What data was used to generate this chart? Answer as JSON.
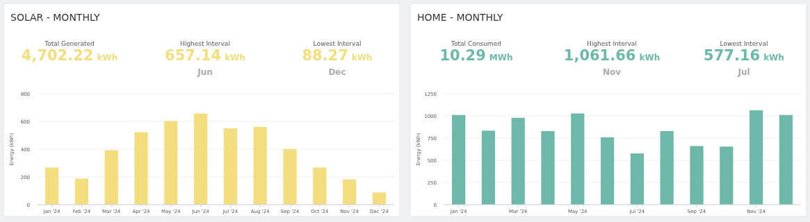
{
  "chart_data": [
    {
      "type": "bar",
      "title": "SOLAR - MONTHLY",
      "ylabel": "Energy (kWh)",
      "annotations": [
        "Total Generated",
        "4,702.22 kWh",
        "Highest Interval",
        "657.14 kWh",
        "Jun",
        "Lowest Interval",
        "88.27 kWh",
        "Dec"
      ],
      "categories": [
        "Jan '24",
        "Feb '24",
        "Mar '24",
        "Apr '24",
        "May '24",
        "Jun '24",
        "Jul '24",
        "Aug '24",
        "Sep '24",
        "Oct '24",
        "Nov '24",
        "Dec '24"
      ],
      "values": [
        268,
        188,
        392,
        522,
        603,
        657,
        550,
        560,
        400,
        268,
        182,
        88
      ],
      "color": "#f3dd7e",
      "ylim": [
        0,
        800
      ],
      "yticks": [
        0,
        200,
        400,
        600,
        800
      ],
      "grid": "y"
    },
    {
      "type": "bar",
      "title": "HOME - MONTHLY",
      "ylabel": "Energy (kWh)",
      "annotations": [
        "Total Consumed",
        "10.29 MWh",
        "Highest Interval",
        "1,061.66 kWh",
        "Nov",
        "Lowest Interval",
        "577.16 kWh",
        "Jul"
      ],
      "categories": [
        "Jan '24",
        null,
        "Mar '24",
        null,
        "May '24",
        null,
        "Jul '24",
        null,
        "Sep '24",
        null,
        "Nov '24",
        null
      ],
      "values": [
        1010,
        833,
        978,
        828,
        1027,
        758,
        577,
        828,
        660,
        654,
        1062,
        1010
      ],
      "color": "#6db8a8",
      "ylim": [
        0,
        1250
      ],
      "yticks": [
        0,
        250,
        500,
        750,
        1000,
        1250
      ],
      "grid": "y"
    }
  ]
}
